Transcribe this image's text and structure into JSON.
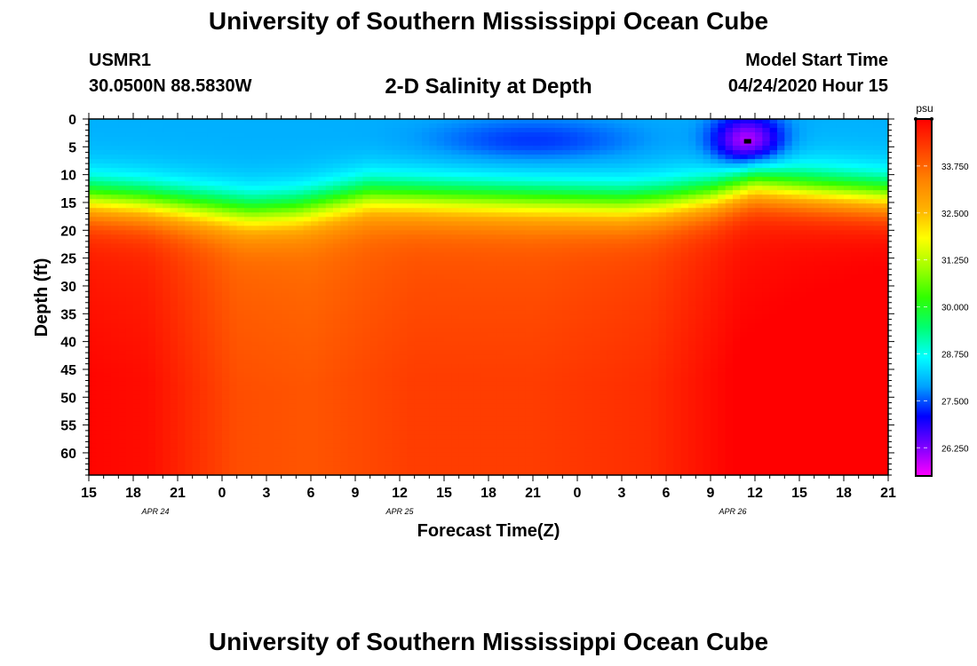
{
  "header": {
    "title": "University of Southern Mississippi Ocean Cube",
    "station": "USMR1",
    "coords": "30.0500N 88.5830W",
    "subtitle": "2-D Salinity at Depth",
    "start_label": "Model Start Time",
    "start_value": "04/24/2020 Hour 15"
  },
  "footer": {
    "title": "University of Southern Mississippi Ocean Cube"
  },
  "chart_data": {
    "type": "heatmap",
    "title": "2-D Salinity at Depth",
    "xlabel": "Forecast Time(Z)",
    "ylabel": "Depth (ft)",
    "x_start_hour": 15,
    "x_range_hours": [
      0,
      54
    ],
    "x_tick_step_hours": 3,
    "x_ticks": [
      "15",
      "18",
      "21",
      "0",
      "3",
      "6",
      "9",
      "12",
      "15",
      "18",
      "21",
      "0",
      "3",
      "6",
      "9",
      "12",
      "15",
      "18",
      "21"
    ],
    "date_labels": [
      {
        "text": "APR 24",
        "hour_offset": 4.5
      },
      {
        "text": "APR 25",
        "hour_offset": 21
      },
      {
        "text": "APR 26",
        "hour_offset": 43.5
      }
    ],
    "ylim": [
      0,
      64
    ],
    "y_ticks": [
      0,
      5,
      10,
      15,
      20,
      25,
      30,
      35,
      40,
      45,
      50,
      55,
      60
    ],
    "colorbar": {
      "unit": "psu",
      "min": 25.5,
      "max": 35.0,
      "tick_values": [
        26.25,
        27.5,
        28.75,
        30.0,
        31.25,
        32.5,
        33.75
      ],
      "tick_labels": [
        "26.250",
        "27.500",
        "28.750",
        "30.000",
        "31.250",
        "32.500",
        "33.750"
      ],
      "colors": [
        "#ff00ff",
        "#7a00ff",
        "#0000ff",
        "#00a0ff",
        "#00ffff",
        "#00ff70",
        "#30ff00",
        "#a0ff00",
        "#ffff00",
        "#ffb000",
        "#ff8000",
        "#ff4000",
        "#ff0000"
      ]
    },
    "upper_layer_salinity_psu": 28.0,
    "lower_layer_salinity_psu": 34.4,
    "halocline_depth_ft": [
      {
        "hour": 0,
        "depth": 14.5
      },
      {
        "hour": 3,
        "depth": 15
      },
      {
        "hour": 7,
        "depth": 16
      },
      {
        "hour": 11,
        "depth": 17
      },
      {
        "hour": 14,
        "depth": 16.5
      },
      {
        "hour": 19,
        "depth": 14
      },
      {
        "hour": 24,
        "depth": 14.5
      },
      {
        "hour": 30,
        "depth": 15
      },
      {
        "hour": 36,
        "depth": 15.5
      },
      {
        "hour": 39,
        "depth": 15
      },
      {
        "hour": 42,
        "depth": 14
      },
      {
        "hour": 45,
        "depth": 12
      },
      {
        "hour": 49,
        "depth": 13
      },
      {
        "hour": 54,
        "depth": 14
      }
    ],
    "deep_salinity_psu": [
      {
        "hour": 0,
        "value": 34.6
      },
      {
        "hour": 4,
        "value": 34.5
      },
      {
        "hour": 10,
        "value": 33.7
      },
      {
        "hour": 15,
        "value": 33.6
      },
      {
        "hour": 22,
        "value": 33.9
      },
      {
        "hour": 30,
        "value": 33.9
      },
      {
        "hour": 38,
        "value": 34.1
      },
      {
        "hour": 44,
        "value": 34.7
      },
      {
        "hour": 48,
        "value": 34.8
      },
      {
        "hour": 54,
        "value": 34.9
      }
    ],
    "min_salinity_feature": {
      "hour": 44.5,
      "depth_ft": 4,
      "value_psu": 25.8
    },
    "mid_fresh_lens": {
      "hour": 30,
      "depth_ft": 4,
      "value_psu": 27.3
    }
  }
}
